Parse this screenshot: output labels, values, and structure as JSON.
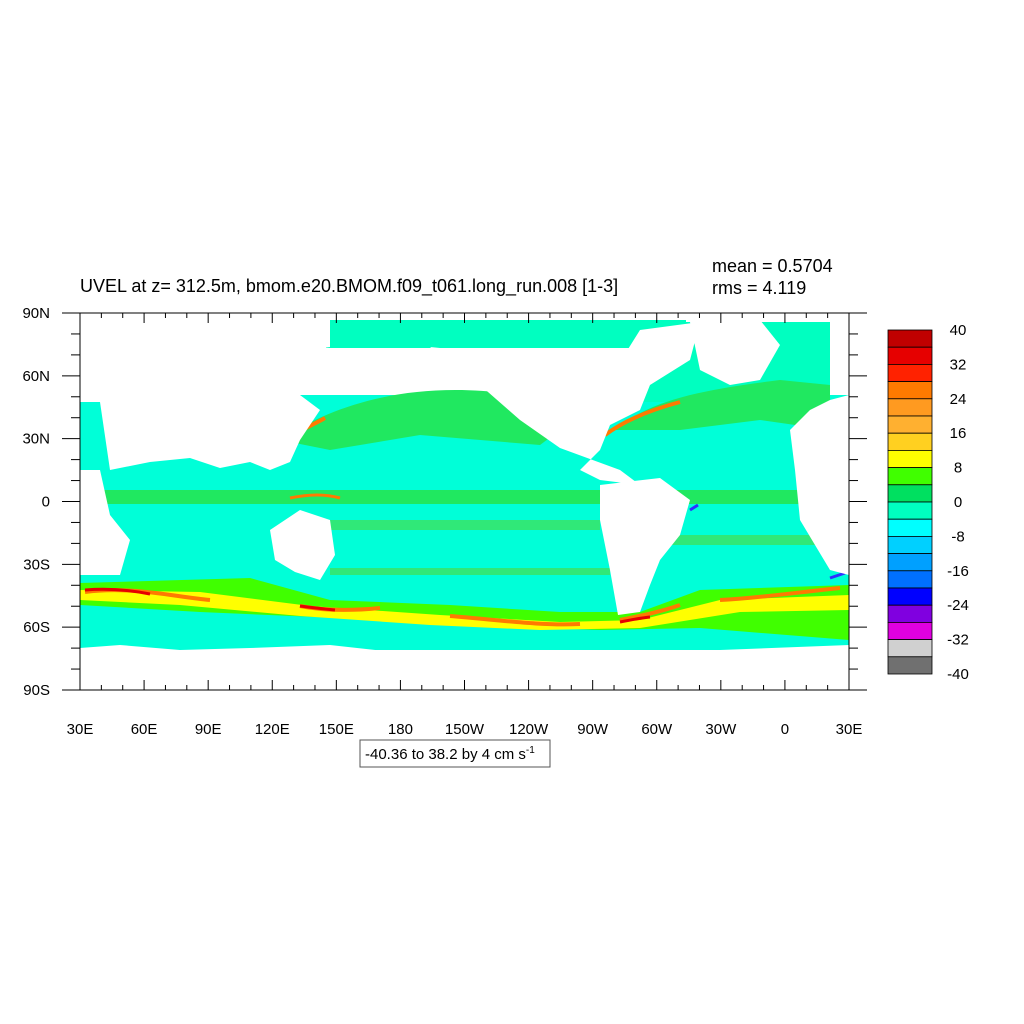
{
  "title": "UVEL at z= 312.5m, bmom.e20.BMOM.f09_t061.long_run.008 [1-3]",
  "stats": {
    "mean": "mean = 0.5704",
    "rms": "rms = 4.119"
  },
  "contour_info": {
    "text": "-40.36 to 38.2 by 4 cm s",
    "superscript": "-1"
  },
  "map": {
    "x_ticks": [
      "30E",
      "60E",
      "90E",
      "120E",
      "150E",
      "180",
      "150W",
      "120W",
      "90W",
      "60W",
      "30W",
      "0",
      "30E"
    ],
    "y_ticks": [
      "90N",
      "60N",
      "30N",
      "0",
      "30S",
      "60S",
      "90S"
    ],
    "land_color": "#ffffff",
    "ocean_background_color": "#00ffd8"
  },
  "colorbar": {
    "labels": [
      "40",
      "32",
      "24",
      "16",
      "8",
      "0",
      "-8",
      "-16",
      "-24",
      "-32",
      "-40"
    ],
    "colors": [
      "#c00000",
      "#e60000",
      "#ff2200",
      "#ff7a00",
      "#ff9a20",
      "#ffb030",
      "#ffd020",
      "#ffff00",
      "#40ff00",
      "#00e060",
      "#00ffc0",
      "#00ffff",
      "#00d0ff",
      "#00a0ff",
      "#0070ff",
      "#0000ff",
      "#8000e0",
      "#e000e0",
      "#d0d0d0",
      "#707070"
    ]
  },
  "chart_data": {
    "type": "heatmap",
    "title": "UVEL at z= 312.5m, bmom.e20.BMOM.f09_t061.long_run.008 [1-3]",
    "xlabel": "",
    "ylabel": "",
    "units": "cm s-1",
    "value_range": [
      -40.36,
      38.2
    ],
    "contour_interval": 4,
    "mean": 0.5704,
    "rms": 4.119,
    "lon_range": [
      30,
      390
    ],
    "lat_range": [
      -90,
      90
    ],
    "levels": [
      -40,
      -36,
      -32,
      -28,
      -24,
      -20,
      -16,
      -12,
      -8,
      -4,
      0,
      4,
      8,
      12,
      16,
      20,
      24,
      28,
      32,
      36,
      40
    ]
  }
}
